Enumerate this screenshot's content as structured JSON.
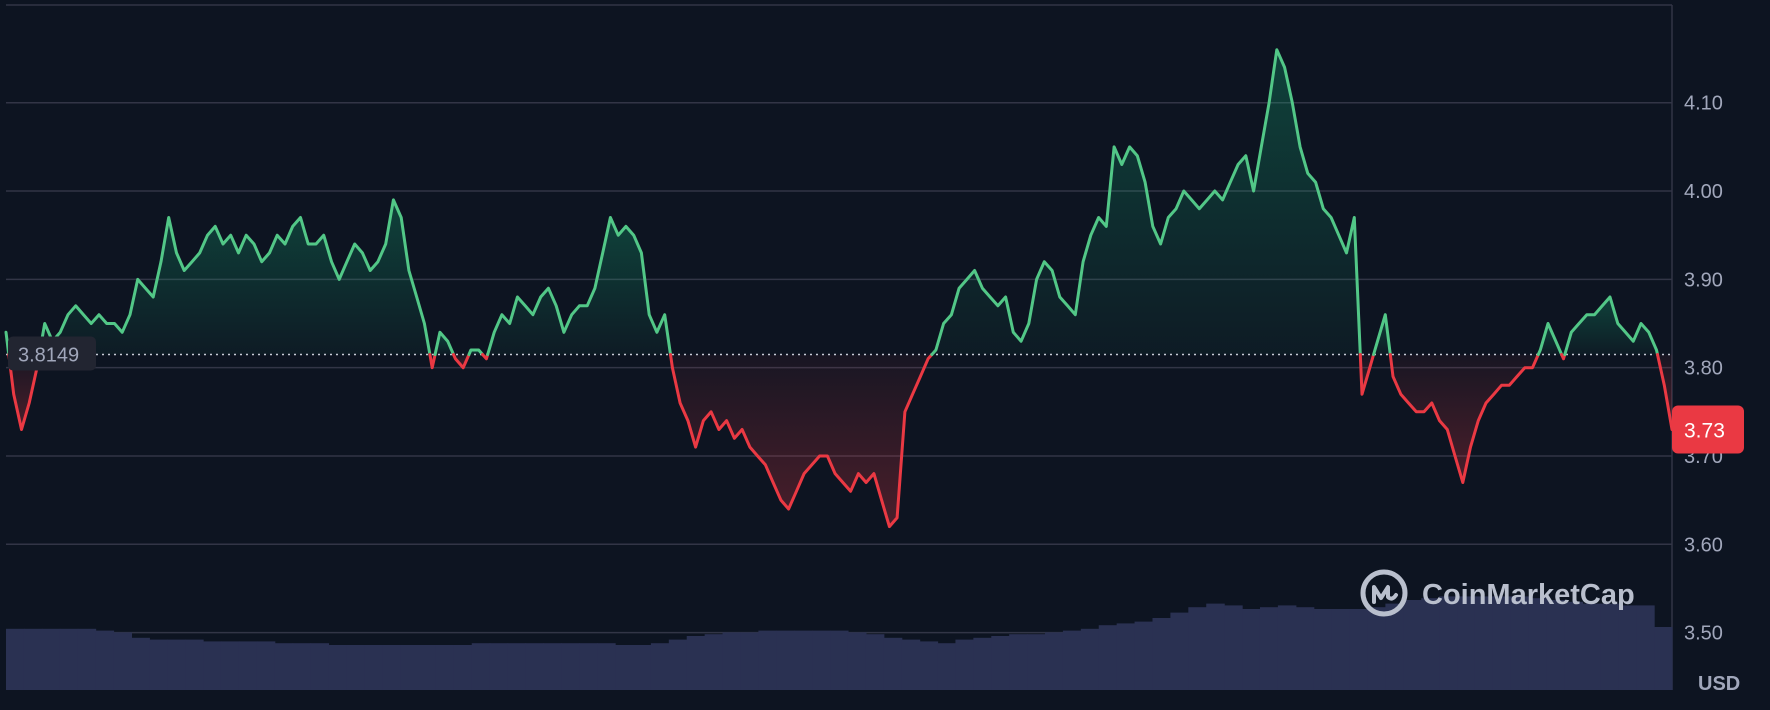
{
  "colors": {
    "background": "#0d1421",
    "grid": "#323546",
    "up": "#16c784",
    "up_line": "#52c787",
    "down": "#ea3943",
    "volume": "#2a3152",
    "text": "#a1a7bb",
    "reference_label_bg": "#222531"
  },
  "watermark": {
    "text": "CoinMarketCap",
    "icon": "coinmarketcap-logo-icon"
  },
  "chart_data": {
    "type": "area",
    "x": [],
    "currency": "USD",
    "reference_price": 3.8149,
    "reference_label": "3.8149",
    "current_price": 3.73,
    "current_label": "3.73",
    "ylim": [
      3.435,
      4.205
    ],
    "y_ticks": [
      3.5,
      3.6,
      3.7,
      3.8,
      3.9,
      4.0,
      4.1
    ],
    "y_tick_labels": [
      "3.50",
      "3.60",
      "3.70",
      "3.80",
      "3.90",
      "4.00",
      "4.10"
    ],
    "grid": true,
    "price_series": [
      3.84,
      3.77,
      3.73,
      3.76,
      3.8,
      3.85,
      3.83,
      3.84,
      3.86,
      3.87,
      3.86,
      3.85,
      3.86,
      3.85,
      3.85,
      3.84,
      3.86,
      3.9,
      3.89,
      3.88,
      3.92,
      3.97,
      3.93,
      3.91,
      3.92,
      3.93,
      3.95,
      3.96,
      3.94,
      3.95,
      3.93,
      3.95,
      3.94,
      3.92,
      3.93,
      3.95,
      3.94,
      3.96,
      3.97,
      3.94,
      3.94,
      3.95,
      3.92,
      3.9,
      3.92,
      3.94,
      3.93,
      3.91,
      3.92,
      3.94,
      3.99,
      3.97,
      3.91,
      3.88,
      3.85,
      3.8,
      3.84,
      3.83,
      3.81,
      3.8,
      3.82,
      3.82,
      3.81,
      3.84,
      3.86,
      3.85,
      3.88,
      3.87,
      3.86,
      3.88,
      3.89,
      3.87,
      3.84,
      3.86,
      3.87,
      3.87,
      3.89,
      3.93,
      3.97,
      3.95,
      3.96,
      3.95,
      3.93,
      3.86,
      3.84,
      3.86,
      3.8,
      3.76,
      3.74,
      3.71,
      3.74,
      3.75,
      3.73,
      3.74,
      3.72,
      3.73,
      3.71,
      3.7,
      3.69,
      3.67,
      3.65,
      3.64,
      3.66,
      3.68,
      3.69,
      3.7,
      3.7,
      3.68,
      3.67,
      3.66,
      3.68,
      3.67,
      3.68,
      3.65,
      3.62,
      3.63,
      3.75,
      3.77,
      3.79,
      3.81,
      3.82,
      3.85,
      3.86,
      3.89,
      3.9,
      3.91,
      3.89,
      3.88,
      3.87,
      3.88,
      3.84,
      3.83,
      3.85,
      3.9,
      3.92,
      3.91,
      3.88,
      3.87,
      3.86,
      3.92,
      3.95,
      3.97,
      3.96,
      4.05,
      4.03,
      4.05,
      4.04,
      4.01,
      3.96,
      3.94,
      3.97,
      3.98,
      4.0,
      3.99,
      3.98,
      3.99,
      4.0,
      3.99,
      4.01,
      4.03,
      4.04,
      4.0,
      4.05,
      4.1,
      4.16,
      4.14,
      4.1,
      4.05,
      4.02,
      4.01,
      3.98,
      3.97,
      3.95,
      3.93,
      3.97,
      3.77,
      3.8,
      3.83,
      3.86,
      3.79,
      3.77,
      3.76,
      3.75,
      3.75,
      3.76,
      3.74,
      3.73,
      3.7,
      3.67,
      3.71,
      3.74,
      3.76,
      3.77,
      3.78,
      3.78,
      3.79,
      3.8,
      3.8,
      3.82,
      3.85,
      3.83,
      3.81,
      3.84,
      3.85,
      3.86,
      3.86,
      3.87,
      3.88,
      3.85,
      3.84,
      3.83,
      3.85,
      3.84,
      3.82,
      3.78,
      3.73
    ],
    "volume_series": [
      0.34,
      0.34,
      0.34,
      0.34,
      0.34,
      0.33,
      0.32,
      0.29,
      0.28,
      0.28,
      0.28,
      0.27,
      0.27,
      0.27,
      0.27,
      0.26,
      0.26,
      0.26,
      0.25,
      0.25,
      0.25,
      0.25,
      0.25,
      0.25,
      0.25,
      0.25,
      0.26,
      0.26,
      0.26,
      0.26,
      0.26,
      0.26,
      0.26,
      0.26,
      0.25,
      0.25,
      0.26,
      0.28,
      0.3,
      0.31,
      0.32,
      0.32,
      0.33,
      0.33,
      0.33,
      0.33,
      0.33,
      0.32,
      0.31,
      0.29,
      0.28,
      0.27,
      0.26,
      0.28,
      0.29,
      0.3,
      0.31,
      0.31,
      0.32,
      0.33,
      0.34,
      0.36,
      0.37,
      0.38,
      0.4,
      0.43,
      0.46,
      0.48,
      0.47,
      0.45,
      0.46,
      0.47,
      0.46,
      0.45,
      0.45,
      0.45,
      0.46,
      0.48,
      0.5,
      0.51,
      0.52,
      0.52,
      0.52,
      0.52,
      0.52,
      0.51,
      0.5,
      0.49,
      0.48,
      0.48,
      0.47,
      0.47,
      0.35
    ]
  }
}
